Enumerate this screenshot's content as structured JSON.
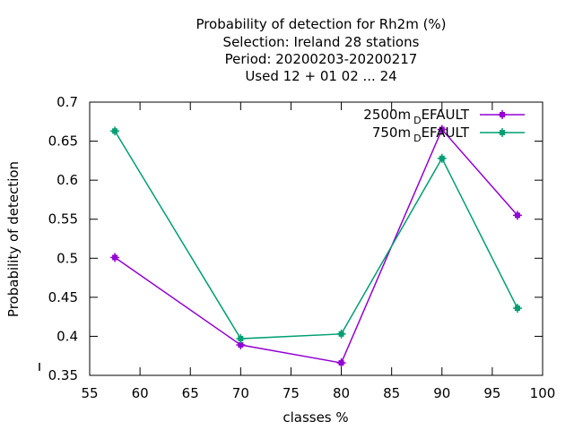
{
  "chart_data": {
    "type": "line",
    "title_lines": [
      "Probability of detection  for Rh2m (%)",
      "Selection: Ireland     28 stations",
      "Period: 20200203-20200217",
      "Used  12 + 01 02 ... 24"
    ],
    "xlabel": "classes %",
    "ylabel": "Probability of detection",
    "xlim": [
      55,
      100
    ],
    "ylim": [
      0.35,
      0.7
    ],
    "xticks": [
      55,
      60,
      65,
      70,
      75,
      80,
      85,
      90,
      95,
      100
    ],
    "yticks": [
      0.35,
      0.4,
      0.45,
      0.5,
      0.55,
      0.6,
      0.65,
      0.7
    ],
    "ytick_labels": [
      "0.35",
      "0.4",
      "0.45",
      "0.5",
      "0.55",
      "0.6",
      "0.65",
      "0.7"
    ],
    "grid": false,
    "legend_position": "top-right",
    "series": [
      {
        "name_main": "2500m",
        "name_sub": "D",
        "name_rest": "EFAULT",
        "color": "#9400d3",
        "x": [
          57.5,
          70,
          80,
          90,
          97.5
        ],
        "y": [
          0.501,
          0.389,
          0.366,
          0.665,
          0.555
        ]
      },
      {
        "name_main": "750m",
        "name_sub": "D",
        "name_rest": "EFAULT",
        "color": "#009e73",
        "x": [
          57.5,
          70,
          80,
          90,
          97.5
        ],
        "y": [
          0.663,
          0.397,
          0.403,
          0.628,
          0.436
        ]
      }
    ]
  }
}
